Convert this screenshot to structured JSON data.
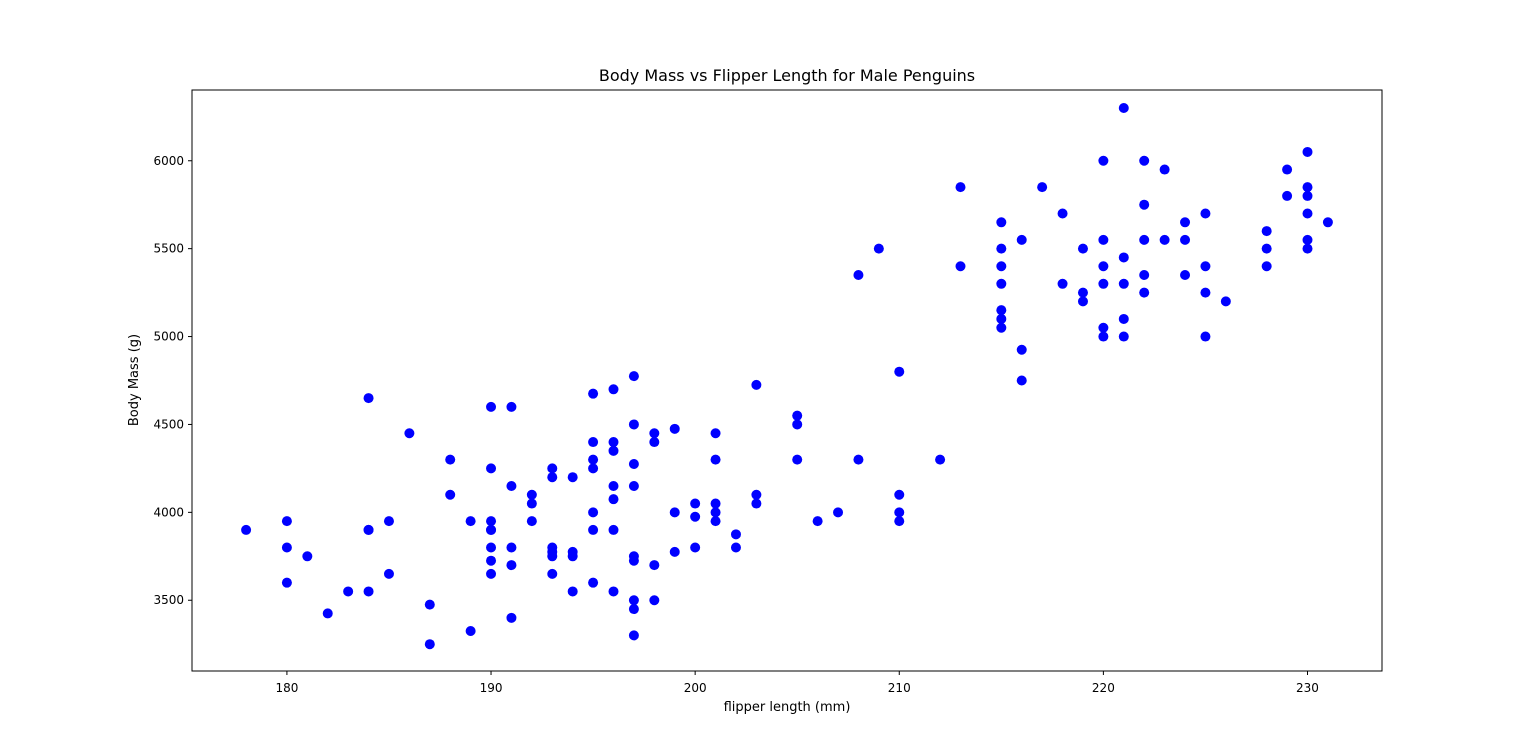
{
  "chart_data": {
    "type": "scatter",
    "title": "Body Mass vs Flipper Length for Male Penguins",
    "xlabel": "flipper length (mm)",
    "ylabel": "Body Mass (g)",
    "xlim": [
      175.35,
      233.65
    ],
    "ylim": [
      3097.5,
      6402.5
    ],
    "xticks": [
      180,
      190,
      200,
      210,
      220,
      230
    ],
    "yticks": [
      3500,
      4000,
      4500,
      5000,
      5500,
      6000
    ],
    "grid": false,
    "legend": "none",
    "marker_color": "#0000ff",
    "points": [
      [
        178,
        3900
      ],
      [
        180,
        3950
      ],
      [
        180,
        3800
      ],
      [
        180,
        3600
      ],
      [
        181,
        3750
      ],
      [
        182,
        3425
      ],
      [
        183,
        3550
      ],
      [
        184,
        4650
      ],
      [
        184,
        3900
      ],
      [
        184,
        3900
      ],
      [
        184,
        3550
      ],
      [
        185,
        3950
      ],
      [
        185,
        3650
      ],
      [
        186,
        4450
      ],
      [
        187,
        3475
      ],
      [
        187,
        3250
      ],
      [
        188,
        4300
      ],
      [
        188,
        4100
      ],
      [
        189,
        3950
      ],
      [
        189,
        3325
      ],
      [
        190,
        4600
      ],
      [
        190,
        4250
      ],
      [
        190,
        3950
      ],
      [
        190,
        3900
      ],
      [
        190,
        3900
      ],
      [
        190,
        3800
      ],
      [
        190,
        3725
      ],
      [
        190,
        3650
      ],
      [
        191,
        4600
      ],
      [
        191,
        4150
      ],
      [
        191,
        3800
      ],
      [
        191,
        3700
      ],
      [
        191,
        3400
      ],
      [
        192,
        4100
      ],
      [
        192,
        4050
      ],
      [
        192,
        3950
      ],
      [
        193,
        4250
      ],
      [
        193,
        4200
      ],
      [
        193,
        3800
      ],
      [
        193,
        3775
      ],
      [
        193,
        3750
      ],
      [
        193,
        3650
      ],
      [
        194,
        4200
      ],
      [
        194,
        3775
      ],
      [
        194,
        3750
      ],
      [
        194,
        3550
      ],
      [
        195,
        4675
      ],
      [
        195,
        4400
      ],
      [
        195,
        4300
      ],
      [
        195,
        4250
      ],
      [
        195,
        4000
      ],
      [
        195,
        3900
      ],
      [
        195,
        3600
      ],
      [
        196,
        4700
      ],
      [
        196,
        4400
      ],
      [
        196,
        4350
      ],
      [
        196,
        4150
      ],
      [
        196,
        4075
      ],
      [
        196,
        3900
      ],
      [
        196,
        3550
      ],
      [
        197,
        4775
      ],
      [
        197,
        4500
      ],
      [
        197,
        4275
      ],
      [
        197,
        4150
      ],
      [
        197,
        3750
      ],
      [
        197,
        3725
      ],
      [
        197,
        3500
      ],
      [
        197,
        3450
      ],
      [
        197,
        3300
      ],
      [
        198,
        4450
      ],
      [
        198,
        4400
      ],
      [
        198,
        3700
      ],
      [
        198,
        3500
      ],
      [
        199,
        4475
      ],
      [
        199,
        4000
      ],
      [
        199,
        3775
      ],
      [
        200,
        4050
      ],
      [
        200,
        3975
      ],
      [
        200,
        3800
      ],
      [
        201,
        4450
      ],
      [
        201,
        4300
      ],
      [
        201,
        4050
      ],
      [
        201,
        4000
      ],
      [
        201,
        3950
      ],
      [
        202,
        3875
      ],
      [
        202,
        3800
      ],
      [
        203,
        4725
      ],
      [
        203,
        4100
      ],
      [
        203,
        4050
      ],
      [
        205,
        4550
      ],
      [
        205,
        4500
      ],
      [
        205,
        4300
      ],
      [
        206,
        3950
      ],
      [
        207,
        4000
      ],
      [
        208,
        5350
      ],
      [
        208,
        4300
      ],
      [
        209,
        5500
      ],
      [
        210,
        4800
      ],
      [
        210,
        4100
      ],
      [
        210,
        4000
      ],
      [
        210,
        3950
      ],
      [
        212,
        4300
      ],
      [
        213,
        5850
      ],
      [
        213,
        5400
      ],
      [
        215,
        5650
      ],
      [
        215,
        5500
      ],
      [
        215,
        5400
      ],
      [
        215,
        5300
      ],
      [
        215,
        5150
      ],
      [
        215,
        5100
      ],
      [
        215,
        5050
      ],
      [
        216,
        5550
      ],
      [
        216,
        4925
      ],
      [
        216,
        4750
      ],
      [
        217,
        5850
      ],
      [
        218,
        5700
      ],
      [
        218,
        5300
      ],
      [
        219,
        5500
      ],
      [
        219,
        5250
      ],
      [
        219,
        5200
      ],
      [
        220,
        6000
      ],
      [
        220,
        5550
      ],
      [
        220,
        5400
      ],
      [
        220,
        5300
      ],
      [
        220,
        5050
      ],
      [
        220,
        5000
      ],
      [
        221,
        6300
      ],
      [
        221,
        5450
      ],
      [
        221,
        5300
      ],
      [
        221,
        5100
      ],
      [
        221,
        5000
      ],
      [
        222,
        6000
      ],
      [
        222,
        5750
      ],
      [
        222,
        5550
      ],
      [
        222,
        5350
      ],
      [
        222,
        5250
      ],
      [
        223,
        5950
      ],
      [
        223,
        5550
      ],
      [
        224,
        5650
      ],
      [
        224,
        5550
      ],
      [
        224,
        5350
      ],
      [
        225,
        5700
      ],
      [
        225,
        5400
      ],
      [
        225,
        5250
      ],
      [
        225,
        5000
      ],
      [
        226,
        5200
      ],
      [
        228,
        5600
      ],
      [
        228,
        5500
      ],
      [
        228,
        5400
      ],
      [
        229,
        5950
      ],
      [
        229,
        5800
      ],
      [
        230,
        6050
      ],
      [
        230,
        5850
      ],
      [
        230,
        5800
      ],
      [
        230,
        5700
      ],
      [
        230,
        5550
      ],
      [
        230,
        5500
      ],
      [
        231,
        5650
      ]
    ]
  }
}
